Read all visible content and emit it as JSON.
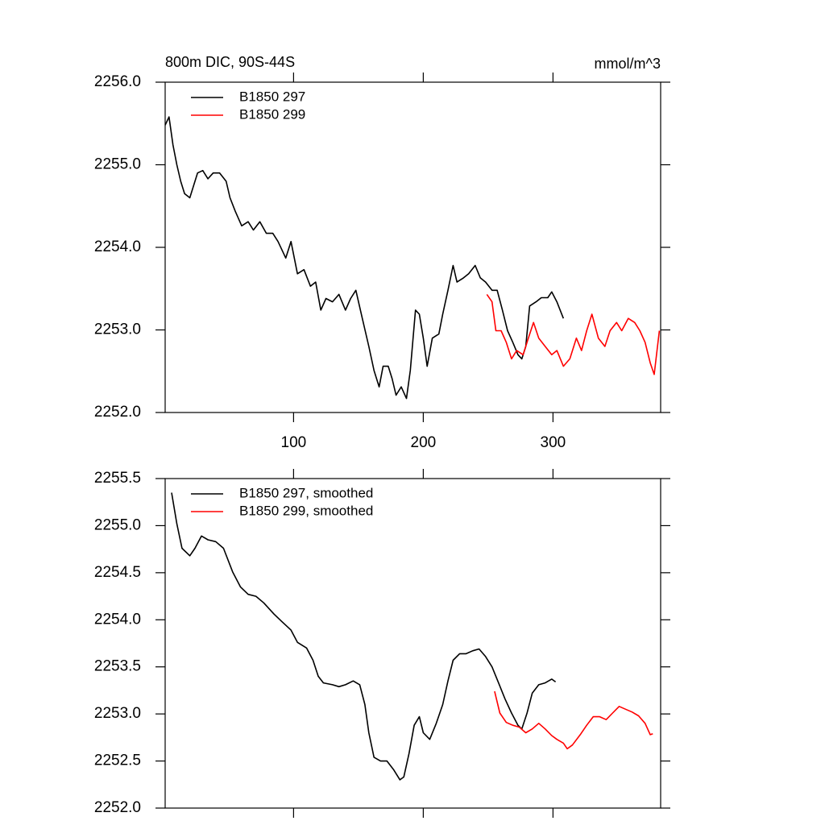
{
  "chart_data": [
    {
      "type": "line",
      "title": "800m DIC, 90S-44S",
      "subtitle_right": "mmol/m^3",
      "xlim": [
        1,
        383
      ],
      "xticks": [
        100,
        200,
        300
      ],
      "xtick_labels": true,
      "ylim": [
        2252,
        2256
      ],
      "yticks": [
        {
          "value": 2252,
          "label": "2252.0"
        },
        {
          "value": 2253,
          "label": "2253.0"
        },
        {
          "value": 2254,
          "label": "2254.0"
        },
        {
          "value": 2255,
          "label": "2255.0"
        },
        {
          "value": 2256,
          "label": "2256.0"
        }
      ],
      "series": [
        {
          "name": "B1850 297",
          "color": "#000000",
          "x": [
            1,
            4,
            7,
            10,
            13,
            16,
            20,
            23,
            26,
            30,
            34,
            38,
            43,
            48,
            51,
            55,
            60,
            65,
            69,
            74,
            79,
            84,
            88,
            94,
            98,
            103,
            108,
            113,
            117,
            121,
            125,
            130,
            135,
            140,
            144,
            148,
            153,
            158,
            162,
            166,
            169,
            173,
            176,
            179,
            183,
            187,
            190,
            194,
            197,
            200,
            203,
            207,
            212,
            215,
            219,
            223,
            226,
            231,
            235,
            240,
            244,
            248,
            253,
            257,
            261,
            265,
            269,
            273,
            276,
            279,
            282,
            287,
            291,
            296,
            299,
            303,
            308
          ],
          "values": [
            2255.48,
            2255.58,
            2255.24,
            2255.0,
            2254.8,
            2254.65,
            2254.6,
            2254.75,
            2254.9,
            2254.93,
            2254.83,
            2254.9,
            2254.9,
            2254.8,
            2254.6,
            2254.44,
            2254.26,
            2254.31,
            2254.21,
            2254.31,
            2254.17,
            2254.17,
            2254.07,
            2253.87,
            2254.07,
            2253.68,
            2253.73,
            2253.53,
            2253.58,
            2253.24,
            2253.38,
            2253.34,
            2253.43,
            2253.24,
            2253.38,
            2253.48,
            2253.14,
            2252.8,
            2252.51,
            2252.31,
            2252.56,
            2252.56,
            2252.41,
            2252.21,
            2252.31,
            2252.17,
            2252.51,
            2253.24,
            2253.19,
            2252.9,
            2252.56,
            2252.9,
            2252.95,
            2253.19,
            2253.48,
            2253.78,
            2253.58,
            2253.63,
            2253.68,
            2253.78,
            2253.63,
            2253.58,
            2253.48,
            2253.48,
            2253.24,
            2252.99,
            2252.85,
            2252.7,
            2252.65,
            2252.8,
            2253.29,
            2253.34,
            2253.39,
            2253.39,
            2253.46,
            2253.34,
            2253.14
          ]
        },
        {
          "name": "B1850 299",
          "color": "#ff0000",
          "x": [
            249,
            253,
            256,
            260,
            264,
            268,
            272,
            277,
            281,
            285,
            289,
            294,
            299,
            303,
            308,
            313,
            318,
            322,
            326,
            330,
            335,
            340,
            344,
            349,
            353,
            358,
            363,
            367,
            371,
            375,
            378,
            382
          ],
          "values": [
            2253.43,
            2253.34,
            2252.99,
            2252.99,
            2252.85,
            2252.65,
            2252.75,
            2252.7,
            2252.9,
            2253.09,
            2252.9,
            2252.8,
            2252.7,
            2252.75,
            2252.56,
            2252.65,
            2252.9,
            2252.75,
            2252.99,
            2253.19,
            2252.9,
            2252.8,
            2252.99,
            2253.09,
            2252.99,
            2253.14,
            2253.09,
            2252.99,
            2252.85,
            2252.6,
            2252.46,
            2252.99
          ]
        }
      ]
    },
    {
      "type": "line",
      "xlim": [
        1,
        383
      ],
      "xticks": [
        100,
        200,
        300
      ],
      "xtick_labels": false,
      "ylim": [
        2252,
        2255.5
      ],
      "yticks": [
        {
          "value": 2252,
          "label": "2252.0"
        },
        2252.5,
        {
          "value": 2253,
          "label": "2253.0"
        },
        2253.5,
        {
          "value": 2254,
          "label": "2254.0"
        },
        2254.5,
        {
          "value": 2255,
          "label": "2255.0"
        },
        2255.5
      ],
      "series": [
        {
          "name": "B1850 297, smoothed",
          "color": "#000000",
          "x": [
            6,
            10,
            14,
            20,
            24,
            29,
            34,
            40,
            46,
            53,
            59,
            65,
            71,
            77,
            85,
            91,
            98,
            103,
            110,
            115,
            119,
            123,
            130,
            135,
            140,
            146,
            151,
            155,
            158,
            162,
            167,
            172,
            177,
            182,
            185,
            189,
            193,
            197,
            200,
            205,
            210,
            215,
            219,
            223,
            228,
            233,
            238,
            243,
            248,
            253,
            258,
            263,
            268,
            273,
            276,
            280,
            284,
            289,
            294,
            299,
            302
          ],
          "values": [
            2255.35,
            2255.02,
            2254.76,
            2254.68,
            2254.76,
            2254.89,
            2254.85,
            2254.83,
            2254.76,
            2254.51,
            2254.35,
            2254.27,
            2254.25,
            2254.18,
            2254.06,
            2253.98,
            2253.89,
            2253.76,
            2253.7,
            2253.57,
            2253.4,
            2253.33,
            2253.31,
            2253.29,
            2253.31,
            2253.35,
            2253.31,
            2253.1,
            2252.8,
            2252.54,
            2252.5,
            2252.5,
            2252.41,
            2252.3,
            2252.33,
            2252.58,
            2252.88,
            2252.97,
            2252.8,
            2252.73,
            2252.9,
            2253.1,
            2253.35,
            2253.57,
            2253.64,
            2253.64,
            2253.67,
            2253.69,
            2253.61,
            2253.5,
            2253.33,
            2253.16,
            2253.01,
            2252.88,
            2252.84,
            2253.01,
            2253.22,
            2253.31,
            2253.33,
            2253.37,
            2253.34
          ]
        },
        {
          "name": "B1850 299, smoothed",
          "color": "#ff0000",
          "x": [
            255,
            259,
            264,
            269,
            274,
            279,
            284,
            289,
            294,
            299,
            303,
            308,
            311,
            315,
            321,
            326,
            331,
            336,
            341,
            346,
            351,
            356,
            361,
            366,
            371,
            375,
            377
          ],
          "values": [
            2253.24,
            2253.01,
            2252.91,
            2252.88,
            2252.86,
            2252.8,
            2252.84,
            2252.9,
            2252.84,
            2252.77,
            2252.73,
            2252.69,
            2252.63,
            2252.67,
            2252.78,
            2252.88,
            2252.97,
            2252.97,
            2252.94,
            2253.01,
            2253.08,
            2253.05,
            2253.02,
            2252.98,
            2252.9,
            2252.78,
            2252.79
          ]
        }
      ]
    }
  ]
}
